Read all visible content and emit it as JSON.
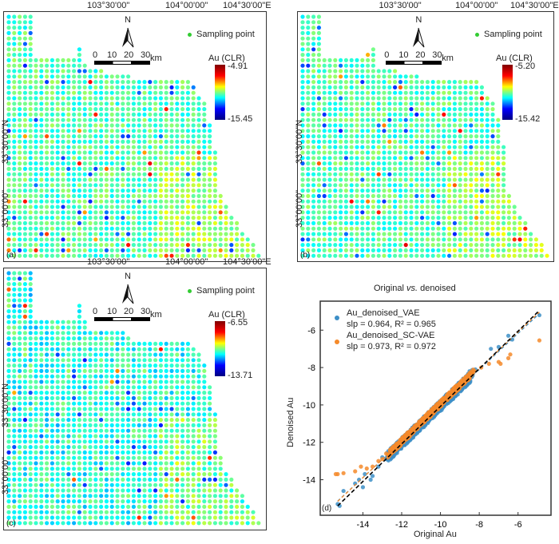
{
  "maps": [
    {
      "label": "(a)",
      "colorbar_title": "Au (CLR)",
      "max": "-4.91",
      "min": "-15.45",
      "blue_bias": 0
    },
    {
      "label": "(b)",
      "colorbar_title": "Au (CLR)",
      "max": "-5.20",
      "min": "-15.42",
      "blue_bias": 0
    },
    {
      "label": "(c)",
      "colorbar_title": "Au (CLR)",
      "max": "-6.55",
      "min": "-13.71",
      "blue_bias": 1
    }
  ],
  "map_common": {
    "lon_ticks": [
      "103°30'00\"",
      "104°00'00\"",
      "104°30'00\"E"
    ],
    "lat_ticks": [
      "33°30'00\"N",
      "33°00'00\""
    ],
    "north": "N",
    "legend": "Sampling point",
    "scale_ticks": [
      "0",
      "10",
      "20",
      "30"
    ],
    "scale_unit": "km"
  },
  "colors": {
    "vae": "#3d8fc7",
    "sc_vae": "#f58a2a",
    "sampling_point": "#33cc33"
  },
  "chart_data": {
    "type": "scatter",
    "title": "Original vs. denoised",
    "title_parts": [
      "Original ",
      "vs.",
      " denoised"
    ],
    "xlabel": "Original Au",
    "ylabel": "Denoised Au",
    "xlim": [
      -16.2,
      -4.3
    ],
    "ylim": [
      -15.9,
      -4.45
    ],
    "xticks": [
      -14,
      -12,
      -10,
      -8,
      -6
    ],
    "yticks": [
      -14,
      -12,
      -10,
      -8,
      -6
    ],
    "panel_label": "(d)",
    "legend_placement": "top-left",
    "series": [
      {
        "name": "Au_denoised_VAE",
        "stats": "slp = 0.964, R² = 0.965",
        "slope": 0.964,
        "color": "#3d8fc7",
        "points": [
          [
            -15.3,
            -15.3
          ],
          [
            -15.2,
            -15.4
          ],
          [
            -15.0,
            -14.6
          ],
          [
            -14.4,
            -14.2
          ],
          [
            -14.2,
            -14.0
          ],
          [
            -14.0,
            -14.4
          ],
          [
            -13.9,
            -13.7
          ],
          [
            -13.6,
            -14.0
          ],
          [
            -13.5,
            -13.8
          ],
          [
            -13.2,
            -13.3
          ],
          [
            -13.0,
            -12.8
          ],
          [
            -12.8,
            -12.9
          ],
          [
            -12.6,
            -12.4
          ],
          [
            -12.3,
            -12.2
          ],
          [
            -12.0,
            -12.1
          ],
          [
            -11.8,
            -11.6
          ],
          [
            -11.6,
            -11.9
          ],
          [
            -11.4,
            -11.2
          ],
          [
            -11.2,
            -11.5
          ],
          [
            -11.0,
            -10.8
          ],
          [
            -10.8,
            -11.1
          ],
          [
            -10.6,
            -10.5
          ],
          [
            -10.4,
            -10.7
          ],
          [
            -10.2,
            -10.0
          ],
          [
            -10.0,
            -10.3
          ],
          [
            -9.8,
            -9.6
          ],
          [
            -9.6,
            -9.9
          ],
          [
            -9.4,
            -9.2
          ],
          [
            -9.2,
            -9.5
          ],
          [
            -9.0,
            -8.9
          ],
          [
            -8.8,
            -8.6
          ],
          [
            -8.5,
            -8.2
          ],
          [
            -8.2,
            -8.1
          ],
          [
            -7.4,
            -7.0
          ],
          [
            -7.0,
            -6.9
          ],
          [
            -6.5,
            -6.3
          ],
          [
            -6.3,
            -6.5
          ],
          [
            -4.9,
            -5.2
          ]
        ]
      },
      {
        "name": "Au_denoised_SC-VAE",
        "stats": "slp = 0.973, R² = 0.972",
        "slope": 0.973,
        "color": "#f58a2a",
        "points": [
          [
            -15.4,
            -13.7
          ],
          [
            -15.3,
            -13.7
          ],
          [
            -15.0,
            -13.65
          ],
          [
            -14.4,
            -13.55
          ],
          [
            -14.1,
            -13.3
          ],
          [
            -13.8,
            -13.4
          ],
          [
            -13.5,
            -13.3
          ],
          [
            -13.2,
            -13.0
          ],
          [
            -13.0,
            -12.9
          ],
          [
            -12.8,
            -12.6
          ],
          [
            -12.5,
            -12.4
          ],
          [
            -12.2,
            -12.1
          ],
          [
            -12.0,
            -11.9
          ],
          [
            -11.8,
            -11.7
          ],
          [
            -11.5,
            -11.4
          ],
          [
            -11.2,
            -11.1
          ],
          [
            -11.0,
            -10.9
          ],
          [
            -10.8,
            -10.7
          ],
          [
            -10.5,
            -10.4
          ],
          [
            -10.2,
            -10.1
          ],
          [
            -10.0,
            -9.9
          ],
          [
            -9.8,
            -9.7
          ],
          [
            -9.5,
            -9.4
          ],
          [
            -9.2,
            -9.2
          ],
          [
            -9.0,
            -8.9
          ],
          [
            -8.7,
            -8.5
          ],
          [
            -8.3,
            -8.2
          ],
          [
            -7.9,
            -8.0
          ],
          [
            -7.5,
            -7.8
          ],
          [
            -7.0,
            -7.7
          ],
          [
            -6.9,
            -7.8
          ],
          [
            -6.4,
            -7.3
          ],
          [
            -6.5,
            -7.5
          ],
          [
            -4.9,
            -6.55
          ]
        ]
      }
    ]
  }
}
